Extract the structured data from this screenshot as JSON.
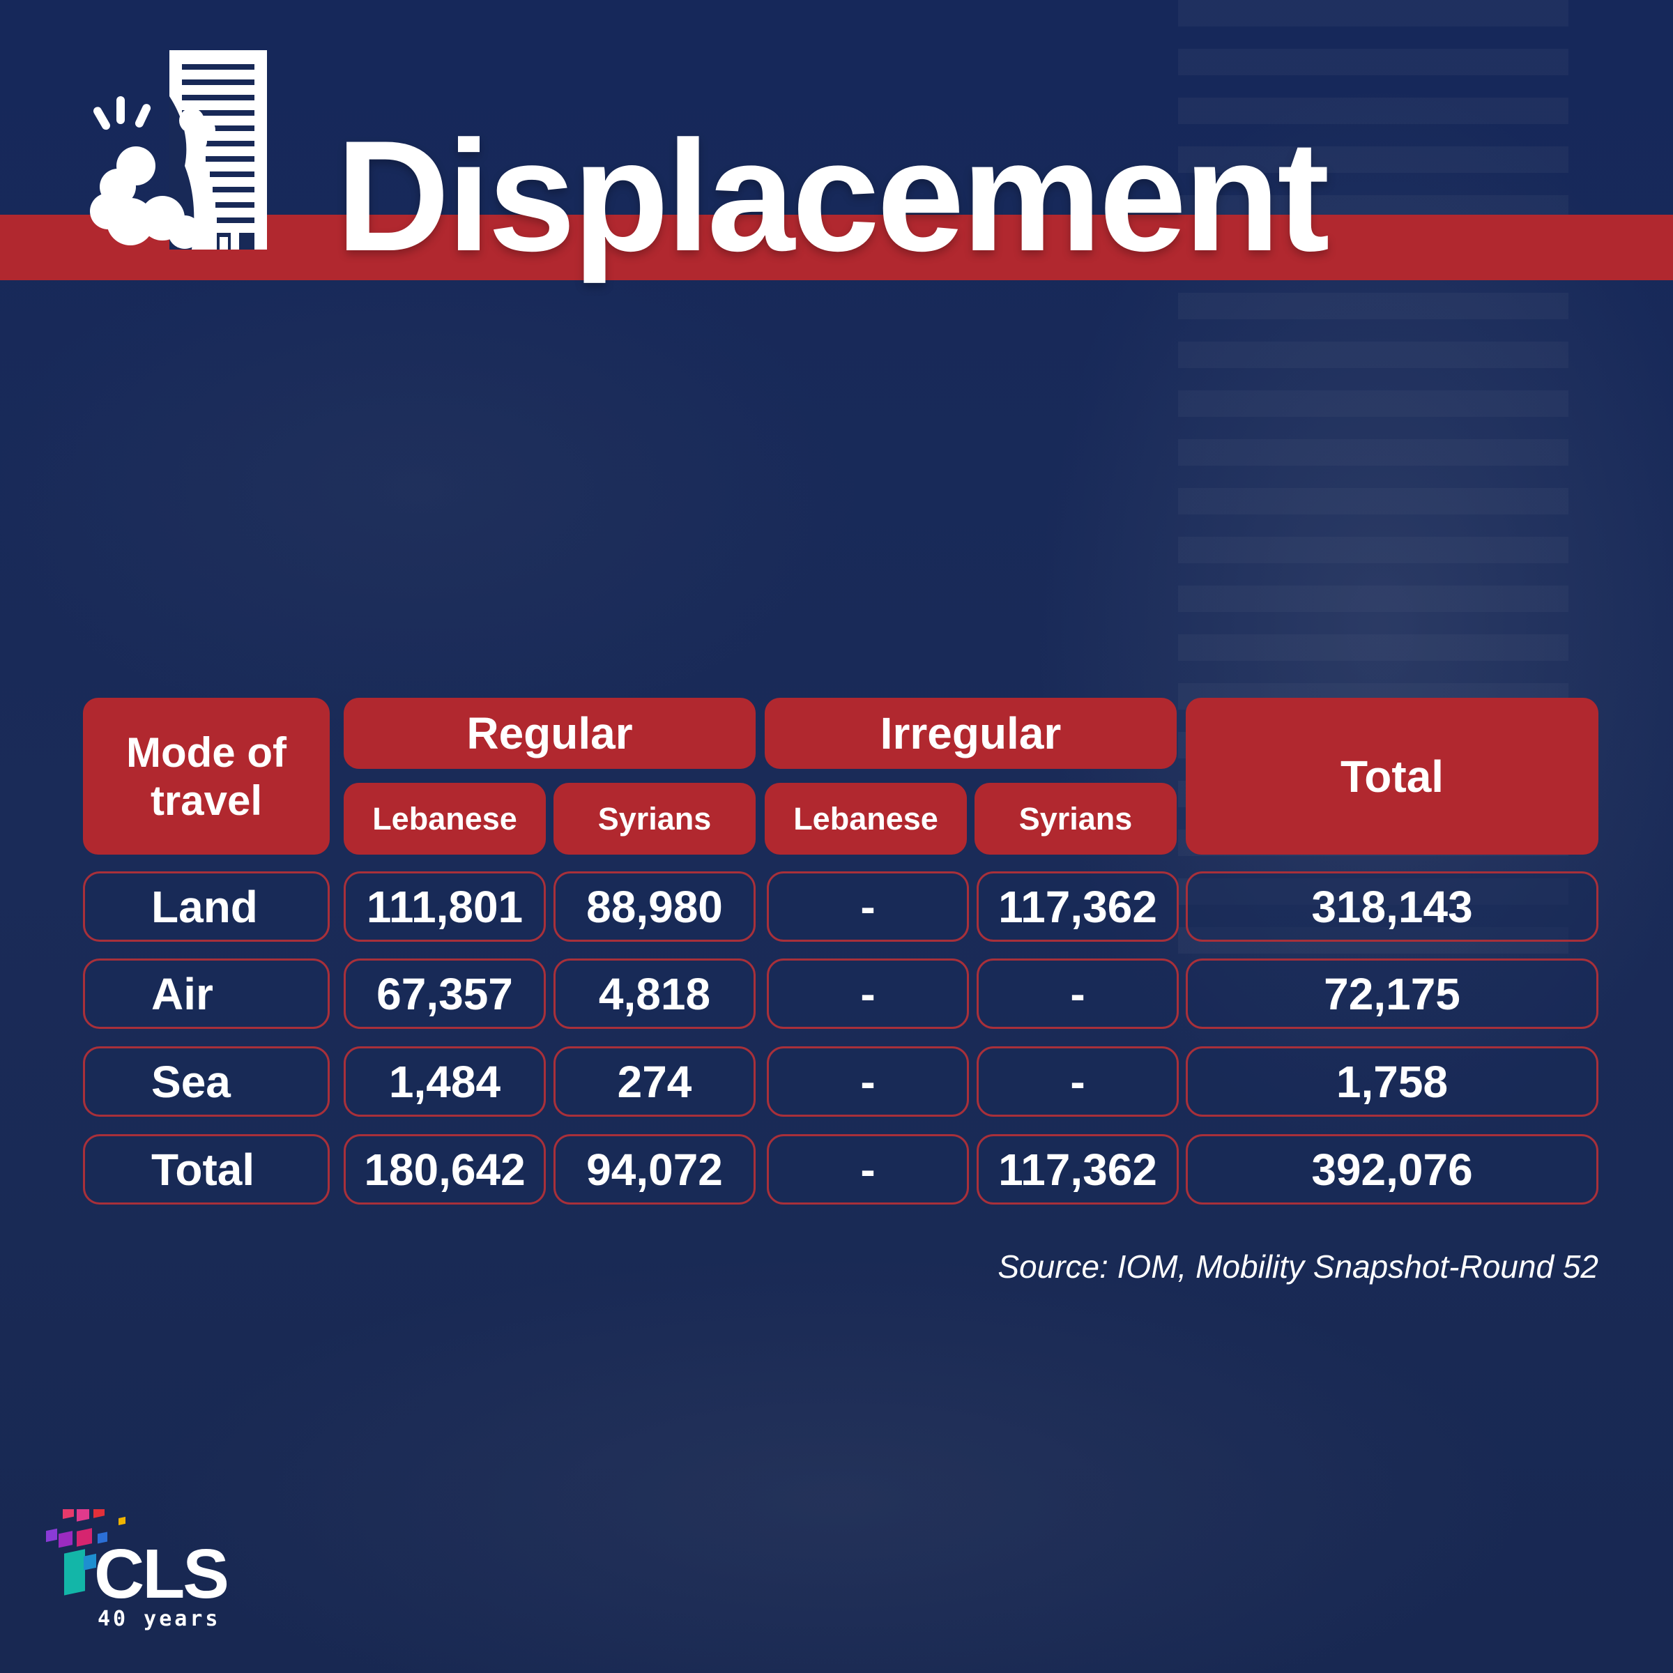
{
  "title": "Displacement",
  "table": {
    "mode_header": "Mode of travel",
    "groups": [
      {
        "label": "Regular",
        "sub": [
          "Lebanese",
          "Syrians"
        ]
      },
      {
        "label": "Irregular",
        "sub": [
          "Lebanese",
          "Syrians"
        ]
      }
    ],
    "total_header": "Total",
    "rows": [
      {
        "label": "Land",
        "values": [
          "111,801",
          "88,980",
          "-",
          "117,362",
          "318,143"
        ]
      },
      {
        "label": "Air",
        "values": [
          "67,357",
          "4,818",
          "-",
          "-",
          "72,175"
        ]
      },
      {
        "label": "Sea",
        "values": [
          "1,484",
          "274",
          "-",
          "-",
          "1,758"
        ]
      },
      {
        "label": "Total",
        "values": [
          "180,642",
          "94,072",
          "-",
          "117,362",
          "392,076"
        ]
      }
    ]
  },
  "source": "Source: IOM, Mobility Snapshot-Round 52",
  "logo": {
    "name": "CLS",
    "subtitle": "40 years"
  },
  "colors": {
    "background": "#182957",
    "accent_red": "#b1282f",
    "text": "#ffffff"
  },
  "icons": {
    "header": "collapsing-building-icon",
    "logo": "cls-logo-icon"
  }
}
